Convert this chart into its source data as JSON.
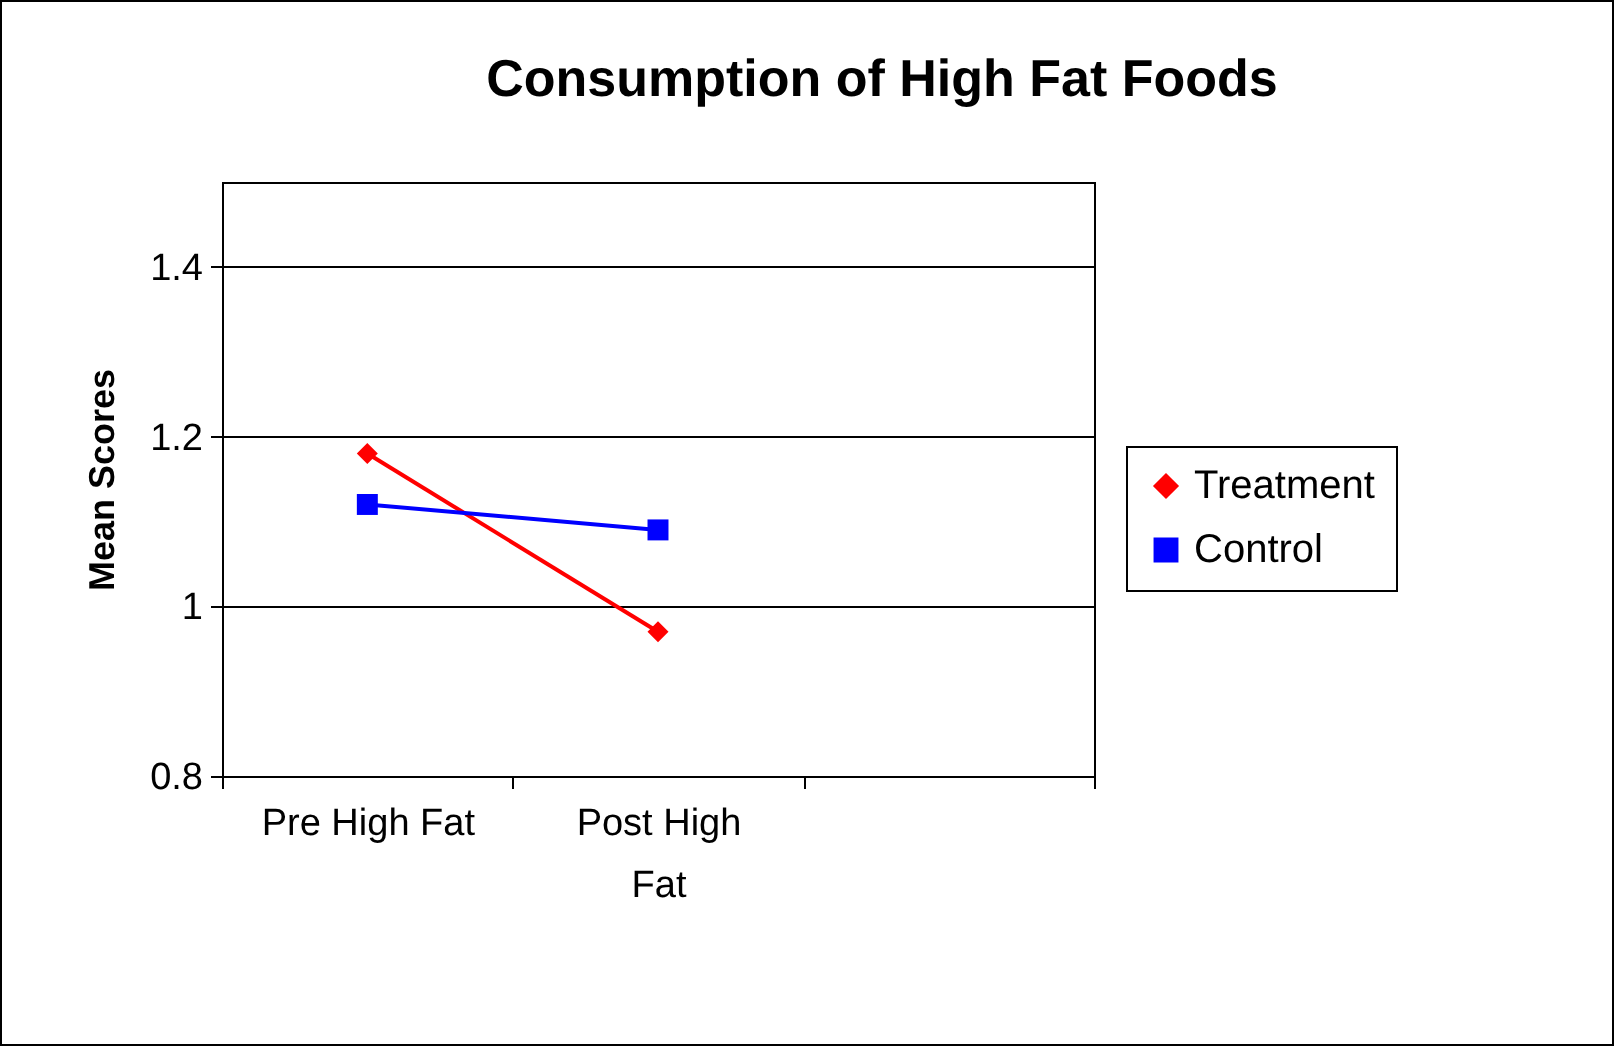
{
  "chart_data": {
    "type": "line",
    "title": "Consumption of High Fat Foods",
    "ylabel": "Mean Scores",
    "categories": [
      "Pre High Fat",
      "Post High Fat",
      null
    ],
    "series": [
      {
        "name": "Treatment",
        "color": "#ff0000",
        "marker": "diamond",
        "values": [
          1.18,
          0.97,
          null
        ]
      },
      {
        "name": "Control",
        "color": "#0000ff",
        "marker": "square",
        "values": [
          1.12,
          1.09,
          null
        ]
      }
    ],
    "ylim": [
      0.8,
      1.5
    ],
    "yticks": [
      0.8,
      1,
      1.2,
      1.4
    ],
    "grid": "y",
    "legend": "right"
  }
}
